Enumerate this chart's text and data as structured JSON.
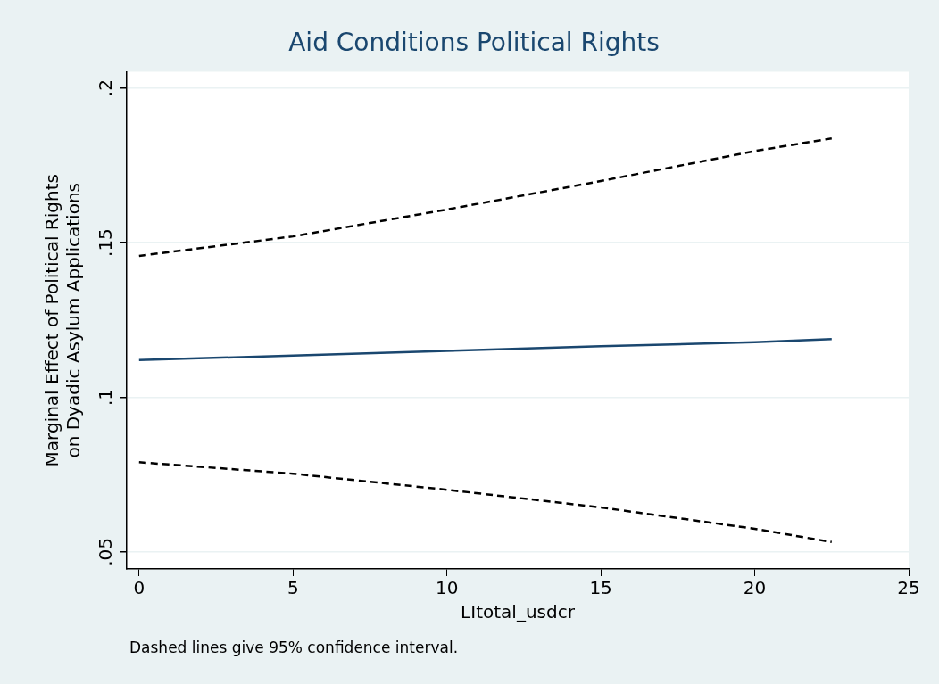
{
  "chart_data": {
    "type": "line",
    "title": "Aid Conditions Political Rights",
    "xlabel": "LItotal_usdcr",
    "ylabel": "Marginal Effect of Political Rights\non Dyadic Asylum Applications",
    "annotations": [
      "Dashed lines give 95% confidence interval."
    ],
    "series": [
      {
        "color": "#000000",
        "line_style": "dashed",
        "x": [
          0,
          5,
          10,
          15,
          20,
          22.5
        ],
        "values": [
          0.1457,
          0.152,
          0.1607,
          0.1699,
          0.1796,
          0.1837
        ]
      },
      {
        "color": "#1a476f",
        "line_style": "solid",
        "x": [
          0,
          5,
          10,
          15,
          20,
          22.5
        ],
        "values": [
          0.112,
          0.1135,
          0.115,
          0.1165,
          0.1178,
          0.1188
        ]
      },
      {
        "color": "#000000",
        "line_style": "dashed",
        "x": [
          0,
          5,
          10,
          15,
          20,
          22.5
        ],
        "values": [
          0.079,
          0.0753,
          0.0701,
          0.0644,
          0.0575,
          0.0532
        ]
      }
    ],
    "xlim": [
      -0.4,
      25
    ],
    "xticks": [
      0,
      5,
      10,
      15,
      20,
      25
    ],
    "ylim": [
      0.0445,
      0.2052
    ],
    "yticks": [
      {
        "value": 0.05,
        "label": ".05"
      },
      {
        "value": 0.1,
        "label": ".1"
      },
      {
        "value": 0.15,
        "label": ".15"
      },
      {
        "value": 0.2,
        "label": ".2"
      }
    ],
    "grid": "y",
    "legend": false,
    "marker": "none"
  }
}
